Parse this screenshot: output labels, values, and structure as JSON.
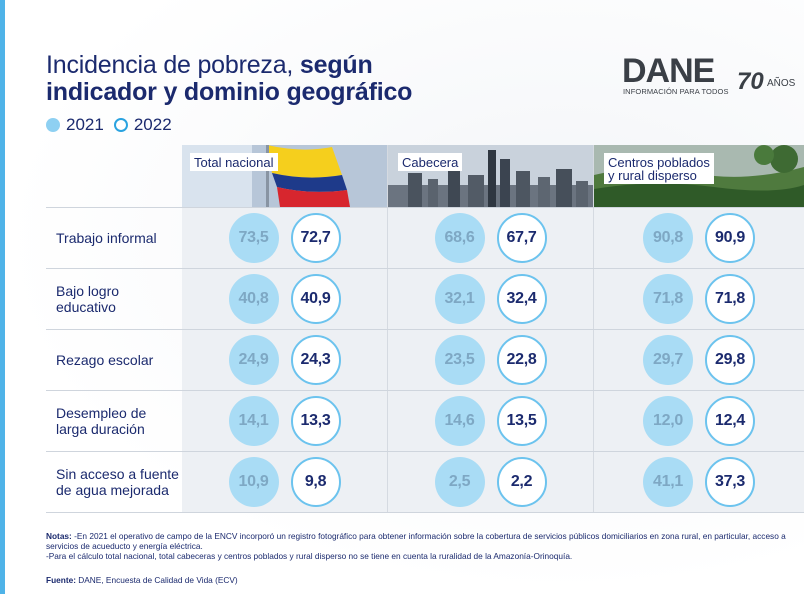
{
  "title": {
    "regular": "Incidencia de pobreza, ",
    "bold_1": "según",
    "bold_2": "indicador y dominio geográfico"
  },
  "legend": {
    "year_2021": "2021",
    "year_2022": "2022"
  },
  "logo": {
    "word": "DANE",
    "subtitle": "INFORMACIÓN PARA TODOS",
    "anniversary": "70",
    "anos": "AÑOS"
  },
  "colors": {
    "accent": "#4fb3e8",
    "bubble_2021_fill": "#a9dcf5",
    "bubble_2022_border": "#6cc3ee",
    "text": "#1b2a6e"
  },
  "chart_data": {
    "type": "table",
    "title": "Incidencia de pobreza, según indicador y dominio geográfico",
    "columns": [
      "Total nacional",
      "Cabecera",
      "Centros poblados y rural disperso"
    ],
    "columns_lines": [
      [
        "Total nacional"
      ],
      [
        "Cabecera"
      ],
      [
        "Centros poblados",
        "y rural disperso"
      ]
    ],
    "rows": [
      {
        "label": "Trabajo informal",
        "label_lines": [
          "Trabajo informal"
        ]
      },
      {
        "label": "Bajo logro educativo",
        "label_lines": [
          "Bajo logro",
          "educativo"
        ]
      },
      {
        "label": "Rezago escolar",
        "label_lines": [
          "Rezago escolar"
        ]
      },
      {
        "label": "Desempleo de larga duración",
        "label_lines": [
          "Desempleo de",
          "larga duración"
        ]
      },
      {
        "label": "Sin acceso a fuente de agua mejorada",
        "label_lines": [
          "Sin acceso a fuente",
          "de agua mejorada"
        ]
      }
    ],
    "series": [
      {
        "name": "2021",
        "values": [
          [
            "73,5",
            "68,6",
            "90,8"
          ],
          [
            "40,8",
            "32,1",
            "71,8"
          ],
          [
            "24,9",
            "23,5",
            "29,7"
          ],
          [
            "14,1",
            "14,6",
            "12,0"
          ],
          [
            "10,9",
            "2,5",
            "41,1"
          ]
        ]
      },
      {
        "name": "2022",
        "values": [
          [
            "72,7",
            "67,7",
            "90,9"
          ],
          [
            "40,9",
            "32,4",
            "71,8"
          ],
          [
            "24,3",
            "22,8",
            "29,8"
          ],
          [
            "13,3",
            "13,5",
            "12,4"
          ],
          [
            "9,8",
            "2,2",
            "37,3"
          ]
        ]
      }
    ],
    "legend": "top-left"
  },
  "notes": {
    "label": "Notas:",
    "line_1": " -En 2021 el operativo de campo de la ENCV incorporó un registro fotográfico para obtener información sobre la cobertura de servicios públicos domiciliarios en zona rural, en particular, acceso a servicios de acueducto y energía eléctrica.",
    "line_2": "-Para el cálculo total nacional, total cabeceras y centros poblados y rural disperso no se tiene en cuenta la ruralidad de la Amazonía-Orinoquía."
  },
  "source": {
    "label": "Fuente:",
    "text": " DANE, Encuesta de Calidad de Vida (ECV)"
  }
}
